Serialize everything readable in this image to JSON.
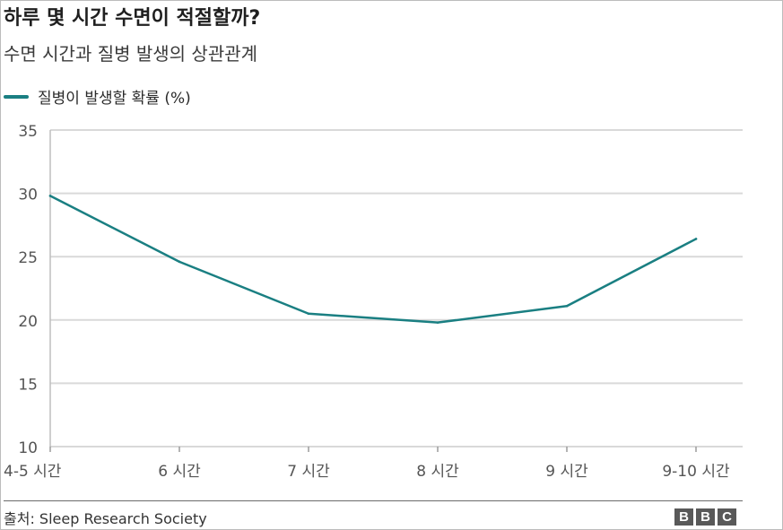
{
  "header": {
    "title": "하루 몇 시간 수면이 적절할까?",
    "subtitle": "수면 시간과 질병 발생의 상관관계"
  },
  "footer": {
    "source": "출처: Sleep Research Society",
    "logo_letters": [
      "B",
      "B",
      "C"
    ]
  },
  "colors": {
    "series": "#1a7f82",
    "grid": "#d9d9d9",
    "axis_text": "#555555",
    "logo_bg": "#595959"
  },
  "chart_data": {
    "type": "line",
    "categories": [
      "4-5 시간",
      "6 시간",
      "7 시간",
      "8 시간",
      "9 시간",
      "9-10 시간"
    ],
    "series": [
      {
        "name": "질병이 발생할 확률 (%)",
        "values": [
          29.8,
          24.6,
          20.5,
          19.8,
          21.1,
          26.4
        ]
      }
    ],
    "ylim": [
      10,
      35
    ],
    "yticks": [
      35,
      30,
      25,
      20,
      15,
      10
    ],
    "grid": true,
    "legend_position": "top-left",
    "xlabel": "",
    "ylabel": ""
  }
}
